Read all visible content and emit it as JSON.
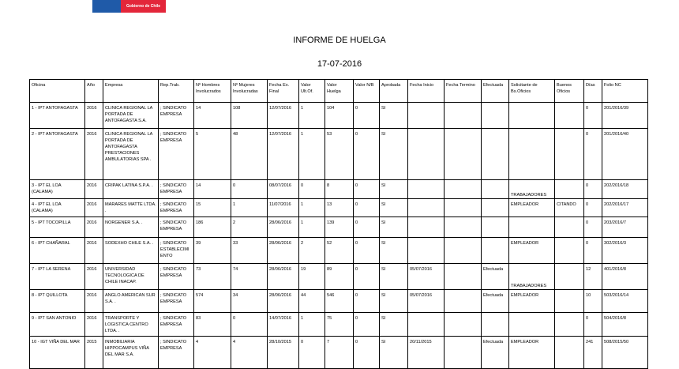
{
  "header": {
    "logo_text": "Gobierno de Chile",
    "title": "INFORME DE HUELGA",
    "date": "17-07-2016"
  },
  "table": {
    "columns": [
      "Oficina",
      "Año",
      "Empresa",
      "Rep.Trab.",
      "Nº Hombres Involucrados",
      "Nº Mujeres Involucradas",
      "Fecha Ex. Final",
      "Valor Ult.Of.",
      "Valor Huelga",
      "Valor N/B",
      "Aprobada",
      "Fecha Inicio",
      "Fecha Termino",
      "Efectuada",
      "Solicitante de Bs.Oficios",
      "Buenos Oficios",
      "Días",
      "Folio NC"
    ],
    "rows": [
      [
        "1 - IPT ANTOFAGASTA",
        "2016",
        "CLINICA REGIONAL LA PORTADA DE ANTOFAGASTA S.A.",
        "; SINDICATO EMPRESA",
        "14",
        "108",
        "12/07/2016",
        "1",
        "104",
        "0",
        "SI",
        "",
        "",
        "",
        "",
        "",
        "0",
        "201/2016/39"
      ],
      [
        "2 - IPT ANTOFAGASTA",
        "2016",
        "CLINICA REGIONAL LA PORTADA DE ANTOFAGASTA PRESTACIONES AMBULATORIAS SPA .",
        "; SINDICATO EMPRESA",
        "5",
        "48",
        "12/07/2016",
        "1",
        "53",
        "0",
        "SI",
        "",
        "",
        "",
        "",
        "",
        "0",
        "201/2016/40"
      ],
      [
        "3 - IPT EL LOA (CALAMA)",
        "2016",
        "CRIPAK LATINA S.P.A. .",
        "; SINDICATO EMPRESA",
        "14",
        "0",
        "08/07/2016",
        "0",
        "8",
        "0",
        "SI",
        "",
        "",
        "",
        "TRABAJADORES",
        "",
        "0",
        "202/2016/18"
      ],
      [
        "4 - IPT EL LOA (CALAMA)",
        "2016",
        "MARARES MATTE LTDA. .",
        "; SINDICATO EMPRESA",
        "15",
        "1",
        "11/07/2016",
        "1",
        "13",
        "0",
        "SI",
        "",
        "",
        "",
        "EMPLEADOR",
        "CITANDO",
        "0",
        "202/2016/17"
      ],
      [
        "5 - IPT TOCOPILLA",
        "2016",
        "NORGENER S.A. .",
        "; SINDICATO EMPRESA",
        "186",
        "2",
        "28/06/2016",
        "1",
        "139",
        "0",
        "SI",
        "",
        "",
        "",
        "",
        "",
        "0",
        "203/2016/7"
      ],
      [
        "6 - IPT CHAÑARAL",
        "2016",
        "SODEXHO CHILE S.A. .",
        "; SINDICATO ESTABLECIMIENTO",
        "39",
        "33",
        "28/06/2016",
        "2",
        "52",
        "0",
        "SI",
        "",
        "",
        "",
        "EMPLEADOR",
        "",
        "0",
        "302/2016/3"
      ],
      [
        "7 - IPT LA SERENA",
        "2016",
        "UNIVERSIDAD TECNOLOGICA DE CHILE INACAP.",
        "; SINDICATO EMPRESA",
        "73",
        "74",
        "28/06/2016",
        "19",
        "89",
        "0",
        "SI",
        "05/07/2016",
        "",
        "Efectuada",
        "TRABAJADORES",
        "",
        "12",
        "401/2016/8"
      ],
      [
        "8 - IPT QUILLOTA",
        "2016",
        "ANGLO AMERICAN SUR S.A. .",
        "; SINDICATO EMPRESA",
        "574",
        "34",
        "28/06/2016",
        "44",
        "546",
        "0",
        "SI",
        "05/07/2016",
        "",
        "Efectuada",
        "EMPLEADOR",
        "",
        "10",
        "503/2016/14"
      ],
      [
        "9 - IPT SAN ANTONIO",
        "2016",
        "TRANSPORTE Y LOGISTICA CENTRO LTDA. .",
        "; SINDICATO EMPRESA",
        "83",
        "0",
        "14/07/2016",
        "1",
        "75",
        "0",
        "SI",
        "",
        "",
        "",
        "",
        "",
        "0",
        "504/2016/8"
      ],
      [
        "10 - IGT VIÑA DEL MAR",
        "2015",
        "INMOBILIARIA HIPPOCAMPUS VIÑA DEL MAR S.A.",
        "; SINDICATO EMPRESA",
        "4",
        "4",
        "28/10/2015",
        "0",
        "7",
        "0",
        "SI",
        "20/11/2015",
        "",
        "Efectuada",
        "EMPLEADOR",
        "",
        "241",
        "508/2015/50"
      ]
    ]
  },
  "colors": {
    "logo_blue": "#1f5aa8",
    "logo_red": "#e3263a"
  }
}
